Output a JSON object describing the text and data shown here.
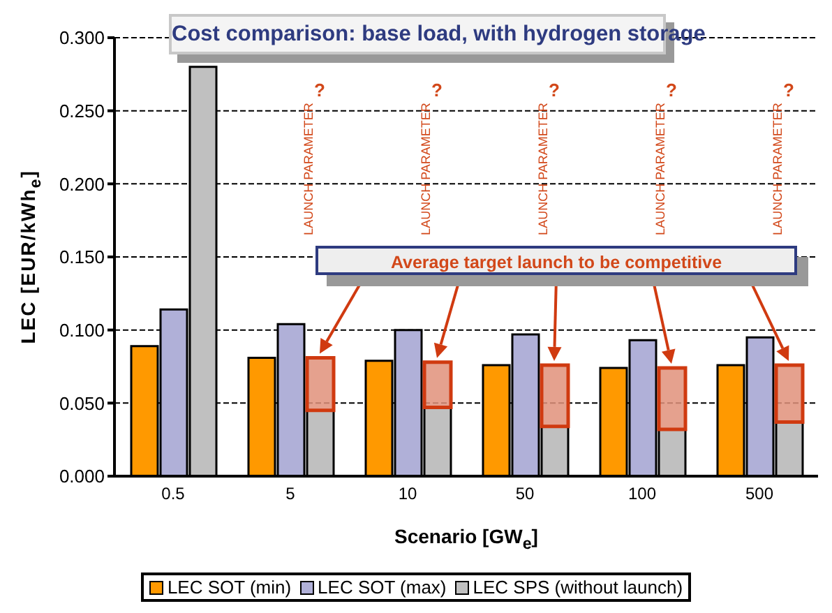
{
  "chart_data": {
    "type": "bar",
    "title": "Cost comparison: base load, with hydrogen storage",
    "xlabel": "Scenario [GW$_{e}$]",
    "ylabel": "LEC [EUR/kWh$_{e}$]",
    "categories": [
      "0.5",
      "5",
      "10",
      "50",
      "100",
      "500"
    ],
    "series": [
      {
        "name": "LEC SOT (min)",
        "color": "#ff9900",
        "values": [
          0.089,
          0.081,
          0.079,
          0.076,
          0.074,
          0.076
        ]
      },
      {
        "name": "LEC SOT (max)",
        "color": "#b0b0d8",
        "values": [
          0.114,
          0.104,
          0.1,
          0.097,
          0.093,
          0.095
        ]
      },
      {
        "name": "LEC SPS (without launch)",
        "color": "#c0c0c0",
        "values": [
          0.28,
          0.045,
          0.047,
          0.034,
          0.032,
          0.037
        ]
      },
      {
        "color": "#e0907a",
        "base": [
          null,
          0.045,
          0.047,
          0.034,
          0.032,
          0.037
        ],
        "values": [
          null,
          0.036,
          0.031,
          0.042,
          0.042,
          0.039
        ]
      }
    ],
    "ylim": [
      0,
      0.3
    ],
    "yticks": [
      {
        "value": 0,
        "label": "0.000"
      },
      {
        "value": 0.05,
        "label": "0.050"
      },
      {
        "value": 0.1,
        "label": "0.100"
      },
      {
        "value": 0.15,
        "label": "0.150"
      },
      {
        "value": 0.2,
        "label": "0.200"
      },
      {
        "value": 0.25,
        "label": "0.250"
      },
      {
        "value": 0.3,
        "label": "0.300"
      }
    ],
    "grid": "y",
    "legend": "bottom",
    "annotations": [
      "Average target launch to be competitive",
      "?",
      "LAUNCH PARAMETER",
      "?",
      "LAUNCH PARAMETER",
      "?",
      "LAUNCH PARAMETER",
      "?",
      "LAUNCH PARAMETER",
      "?",
      "LAUNCH PARAMETER"
    ]
  }
}
